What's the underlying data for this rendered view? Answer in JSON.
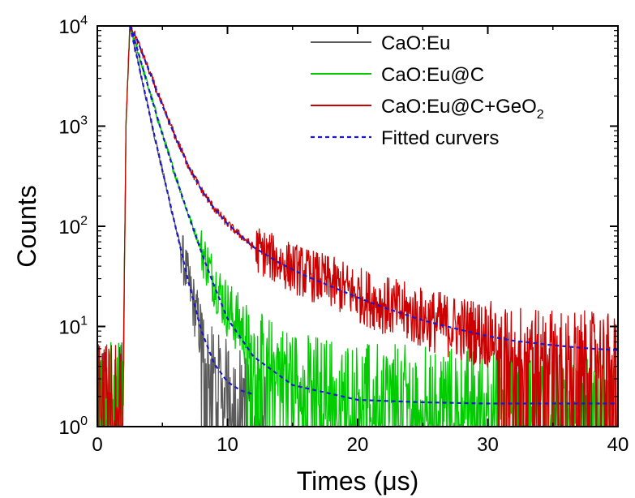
{
  "chart_data": {
    "type": "line",
    "xlabel": "Times (μs)",
    "ylabel": "Counts",
    "xlim": [
      0,
      40
    ],
    "ylim": [
      1,
      10000
    ],
    "yscale": "log",
    "grid": false,
    "legend_position": "top-right",
    "x_ticks": [
      0,
      10,
      20,
      30,
      40
    ],
    "x_tick_labels": [
      "0",
      "10",
      "20",
      "30",
      "40"
    ],
    "y_ticks": [
      1,
      10,
      100,
      1000,
      10000
    ],
    "y_tick_labels": [
      {
        "base": "10",
        "exp": "0"
      },
      {
        "base": "10",
        "exp": "1"
      },
      {
        "base": "10",
        "exp": "2"
      },
      {
        "base": "10",
        "exp": "3"
      },
      {
        "base": "10",
        "exp": "4"
      }
    ],
    "series": [
      {
        "name": "CaO:Eu",
        "color": "#5a5a5a",
        "style": "solid",
        "x": [
          0,
          2.0,
          2.2,
          2.5,
          3,
          4,
          5,
          6,
          7,
          8,
          8.5,
          9,
          10,
          11,
          12,
          13
        ],
        "y": [
          2.5,
          2.5,
          1000,
          10000,
          5200,
          1350,
          360,
          100,
          28,
          8,
          5,
          3.5,
          2.8,
          2.3,
          2,
          1.6
        ]
      },
      {
        "name": "CaO:Eu@C",
        "color": "#00cc00",
        "style": "solid",
        "x": [
          0,
          2.0,
          2.2,
          2.5,
          3,
          4,
          5,
          6,
          7,
          8,
          9,
          10,
          12,
          15,
          20,
          25,
          30,
          35,
          40
        ],
        "y": [
          2.5,
          2.5,
          1000,
          10000,
          6300,
          2250,
          830,
          320,
          130,
          58,
          28,
          15,
          6.5,
          3.6,
          2.5,
          2.3,
          2.2,
          2.2,
          2.2
        ]
      },
      {
        "name": "CaO:Eu@C+GeO2",
        "color": "#cc0000",
        "style": "solid",
        "x": [
          0,
          2.0,
          2.2,
          2.5,
          3,
          4,
          5,
          6,
          7,
          8,
          9,
          10,
          12,
          14,
          16,
          18,
          20,
          22,
          25,
          28,
          30,
          32,
          35,
          38,
          40
        ],
        "y": [
          2.5,
          2.5,
          1000,
          10000,
          7600,
          3500,
          1600,
          780,
          400,
          230,
          150,
          106,
          62,
          44,
          34,
          27,
          21,
          16.5,
          12,
          9.5,
          8.3,
          7.5,
          6.7,
          6.2,
          6.0
        ]
      },
      {
        "name": "Fitted curvers",
        "color": "#1a1acc",
        "style": "dashed",
        "fits": [
          {
            "x": [
              2.5,
              3,
              4,
              5,
              6,
              7,
              8,
              9,
              10,
              11,
              12
            ],
            "y": [
              10000,
              5200,
              1350,
              360,
              100,
              28,
              9,
              4.2,
              2.8,
              2.3,
              2.1
            ]
          },
          {
            "x": [
              2.5,
              3,
              4,
              5,
              6,
              7,
              8,
              9,
              10,
              12,
              15,
              20,
              25,
              30,
              35,
              40
            ],
            "y": [
              10000,
              6300,
              2250,
              830,
              320,
              130,
              55,
              25,
              12,
              5,
              2.6,
              1.85,
              1.75,
              1.7,
              1.7,
              1.7
            ]
          },
          {
            "x": [
              2.5,
              3,
              4,
              5,
              6,
              7,
              8,
              9,
              10,
              12,
              14,
              16,
              18,
              20,
              22,
              25,
              28,
              30,
              32,
              35,
              38,
              40
            ],
            "y": [
              10000,
              7600,
              3500,
              1600,
              780,
              400,
              230,
              150,
              106,
              62,
              43,
              32,
              25,
              19.5,
              15.5,
              11.5,
              9.2,
              8.0,
              7.2,
              6.5,
              6.0,
              5.8
            ]
          }
        ]
      }
    ],
    "legend": [
      {
        "text": "CaO:Eu",
        "sub": "",
        "color": "#5a5a5a",
        "dashed": false
      },
      {
        "text": "CaO:Eu@C",
        "sub": "",
        "color": "#00cc00",
        "dashed": false
      },
      {
        "text": "CaO:Eu@C+GeO",
        "sub": "2",
        "color": "#cc0000",
        "dashed": false
      },
      {
        "text": "Fitted curvers",
        "sub": "",
        "color": "#1a1acc",
        "dashed": true
      }
    ]
  }
}
